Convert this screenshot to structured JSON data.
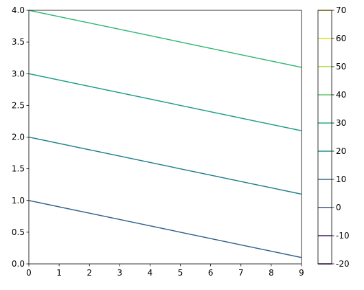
{
  "chart_data": {
    "type": "line",
    "x": [
      0,
      9
    ],
    "series": [
      {
        "color": "#33638d",
        "values": [
          1.0,
          0.1
        ]
      },
      {
        "color": "#24808e",
        "values": [
          2.0,
          1.1
        ]
      },
      {
        "color": "#1f9d89",
        "values": [
          3.0,
          2.1
        ]
      },
      {
        "color": "#35b779",
        "values": [
          4.0,
          3.1
        ]
      }
    ],
    "xlim": [
      0,
      9
    ],
    "xticks": [
      0,
      1,
      2,
      3,
      4,
      5,
      6,
      7,
      8,
      9
    ],
    "ylim": [
      0,
      4
    ],
    "yticks": [
      {
        "value": 0,
        "label": "0.0"
      },
      {
        "value": 0.5,
        "label": "0.5"
      },
      {
        "value": 1,
        "label": "1.0"
      },
      {
        "value": 1.5,
        "label": "1.5"
      },
      {
        "value": 2,
        "label": "2.0"
      },
      {
        "value": 2.5,
        "label": "2.5"
      },
      {
        "value": 3,
        "label": "3.0"
      },
      {
        "value": 3.5,
        "label": "3.5"
      },
      {
        "value": 4,
        "label": "4.0"
      }
    ],
    "colorbar": {
      "lim": [
        -20,
        70
      ],
      "ticks": [
        -20,
        -10,
        0,
        10,
        20,
        30,
        40,
        50,
        60,
        70
      ],
      "colors": [
        "#440154",
        "#48186a",
        "#3b528b",
        "#2c718e",
        "#21908d",
        "#27ad81",
        "#5cc863",
        "#aadc32",
        "#d8e219",
        "#e0b000"
      ]
    }
  }
}
